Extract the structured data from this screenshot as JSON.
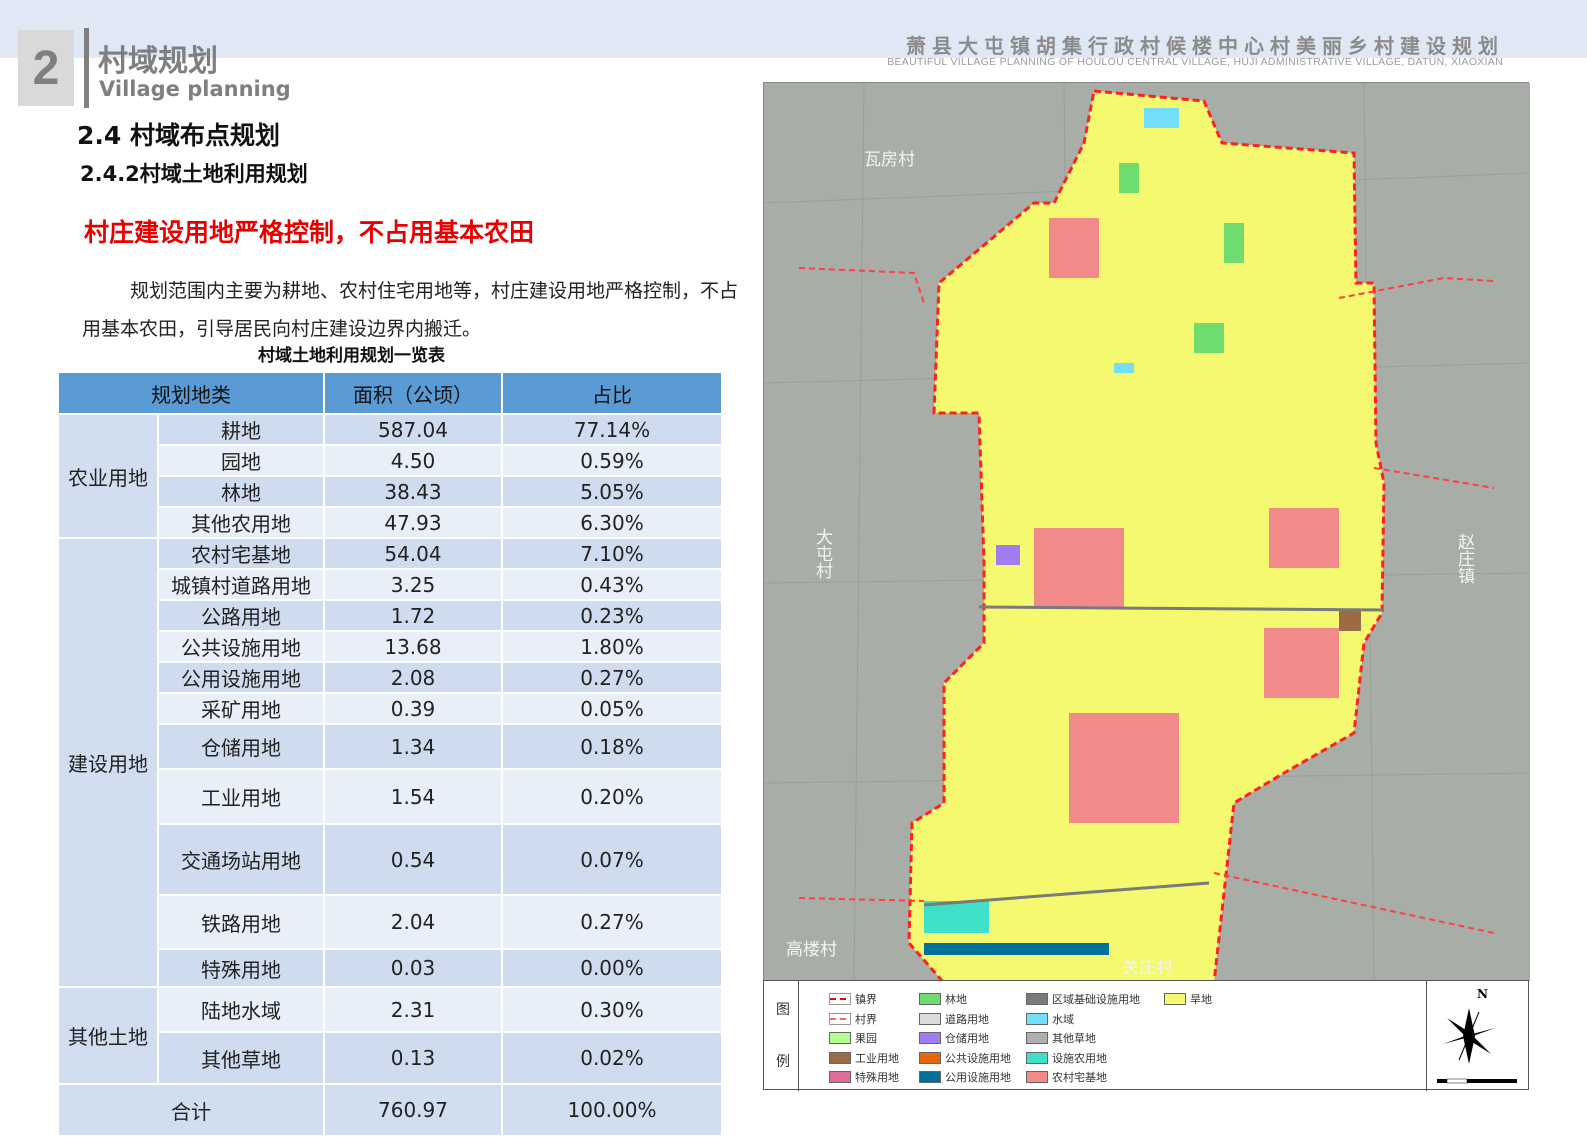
{
  "header": {
    "section_number": "2",
    "section_cn": "村域规划",
    "section_en": "Village planning",
    "project_cn": "萧县大屯镇胡集行政村候楼中心村美丽乡村建设规划",
    "project_en": "BEAUTIFUL VILLAGE PLANNING OF HOULOU CENTRAL VILLAGE, HUJI ADMINISTRATIVE VILLAGE, DATUN, XIAOXIAN"
  },
  "content": {
    "heading1": "2.4 村域布点规划",
    "heading2": "2.4.2村域土地利用规划",
    "highlight": "村庄建设用地严格控制，不占用基本农田",
    "paragraph": "规划范围内主要为耕地、农村住宅用地等，村庄建设用地严格控制，不占用基本农田，引导居民向村庄建设边界内搬迁。",
    "table_caption": "村域土地利用规划一览表"
  },
  "table": {
    "headers": [
      "规划地类",
      "面积（公顷）",
      "占比"
    ],
    "groups": [
      {
        "name": "农业用地",
        "rows": [
          [
            "耕地",
            "587.04",
            "77.14%"
          ],
          [
            "园地",
            "4.50",
            "0.59%"
          ],
          [
            "林地",
            "38.43",
            "5.05%"
          ],
          [
            "其他农用地",
            "47.93",
            "6.30%"
          ]
        ]
      },
      {
        "name": "建设用地",
        "rows": [
          [
            "农村宅基地",
            "54.04",
            "7.10%"
          ],
          [
            "城镇村道路用地",
            "3.25",
            "0.43%"
          ],
          [
            "公路用地",
            "1.72",
            "0.23%"
          ],
          [
            "公共设施用地",
            "13.68",
            "1.80%"
          ],
          [
            "公用设施用地",
            "2.08",
            "0.27%"
          ],
          [
            "采矿用地",
            "0.39",
            "0.05%"
          ],
          [
            "仓储用地",
            "1.34",
            "0.18%"
          ],
          [
            "工业用地",
            "1.54",
            "0.20%"
          ],
          [
            "交通场站用地",
            "0.54",
            "0.07%"
          ],
          [
            "铁路用地",
            "2.04",
            "0.27%"
          ],
          [
            "特殊用地",
            "0.03",
            "0.00%"
          ]
        ]
      },
      {
        "name": "其他土地",
        "rows": [
          [
            "陆地水域",
            "2.31",
            "0.30%"
          ],
          [
            "其他草地",
            "0.13",
            "0.02%"
          ]
        ]
      }
    ],
    "total": [
      "合计",
      "760.97",
      "100.00%"
    ]
  },
  "map": {
    "labels": [
      "瓦房村",
      "大屯村",
      "赵庄镇",
      "高楼村",
      "关庄村"
    ],
    "north": "N",
    "legend_title": [
      "图",
      "例"
    ],
    "legend": [
      {
        "label": "镇界",
        "color": "#ff0000",
        "type": "dash"
      },
      {
        "label": "村界",
        "color": "#ff6060",
        "type": "dash"
      },
      {
        "label": "果园",
        "color": "#b3ff8c"
      },
      {
        "label": "工业用地",
        "color": "#9b6b45"
      },
      {
        "label": "特殊用地",
        "color": "#e06a98"
      },
      {
        "label": "林地",
        "color": "#6fdc6f"
      },
      {
        "label": "道路用地",
        "color": "#dcdcdc"
      },
      {
        "label": "仓储用地",
        "color": "#a07cf0"
      },
      {
        "label": "公共设施用地",
        "color": "#e8660a"
      },
      {
        "label": "公用设施用地",
        "color": "#00729a"
      },
      {
        "label": "区域基础设施用地",
        "color": "#7a7a7a"
      },
      {
        "label": "水域",
        "color": "#72def8"
      },
      {
        "label": "其他草地",
        "color": "#b0b0b0"
      },
      {
        "label": "设施农用地",
        "color": "#3fe0c8"
      },
      {
        "label": "农村宅基地",
        "color": "#f28a8a"
      },
      {
        "label": "旱地",
        "color": "#f4f970"
      }
    ]
  }
}
